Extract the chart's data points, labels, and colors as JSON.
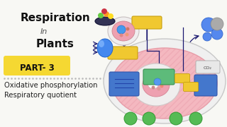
{
  "bg_color": "#f8f8f4",
  "title_line1": "Respiration",
  "title_in": "In",
  "title_line2": "Plants",
  "part_label": "PART- 3",
  "part_bg": "#f5d832",
  "subtitle1": "Oxidative phosphorylation",
  "subtitle2": "Respiratory quotient",
  "text_color_title": "#111111",
  "text_color_subtitle": "#222222",
  "cell_color": "#f4b8c0",
  "cell_edge": "#e8a0aa",
  "nucleus_color": "#f8d8dc",
  "nucleus_edge": "#ddb0b8",
  "inner_nuc_color": "#ee8898",
  "green_mito": "#5dbb7a",
  "blue_box_color": "#4477cc",
  "yellow_color": "#f0c830",
  "arrow_color": "#1a1870"
}
